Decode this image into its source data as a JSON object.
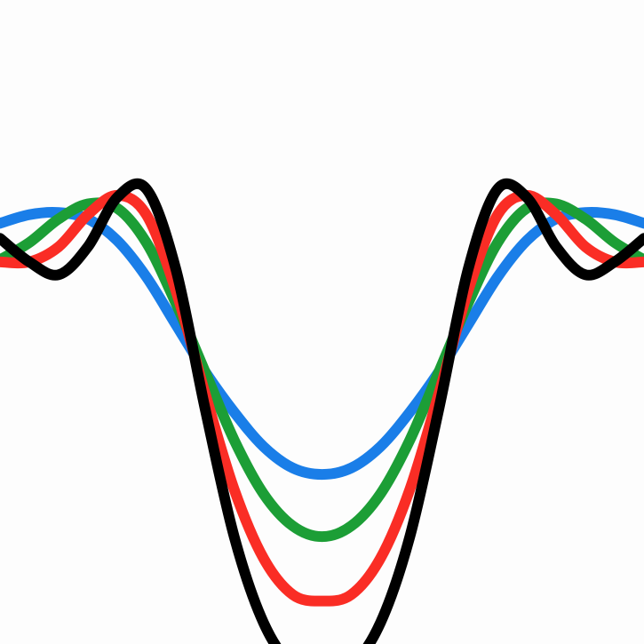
{
  "chart_data": {
    "type": "line",
    "title": "",
    "xlabel": "",
    "ylabel": "",
    "xlim": [
      -2.2,
      2.2
    ],
    "ylim": [
      -1.5,
      1.5
    ],
    "grid": false,
    "legend": "none",
    "axes_visible": false,
    "series": [
      {
        "color": "#1a7ee8",
        "x": [
          -2.2,
          -2.0,
          -1.8,
          -1.6,
          -1.4,
          -1.2,
          -1.0,
          -0.8,
          -0.6,
          -0.4,
          -0.2,
          0.0,
          0.2,
          0.4,
          0.6,
          0.8,
          1.0,
          1.2,
          1.4,
          1.6,
          1.8,
          2.0,
          2.2
        ],
        "y": [
          0.46,
          0.5,
          0.51,
          0.48,
          0.38,
          0.21,
          -0.01,
          -0.23,
          -0.42,
          -0.58,
          -0.68,
          -0.71,
          -0.68,
          -0.58,
          -0.42,
          -0.23,
          -0.01,
          0.21,
          0.38,
          0.48,
          0.51,
          0.5,
          0.46
        ]
      },
      {
        "color": "#1c9e36",
        "x": [
          -2.2,
          -2.0,
          -1.8,
          -1.6,
          -1.4,
          -1.2,
          -1.0,
          -0.8,
          -0.6,
          -0.4,
          -0.2,
          0.0,
          0.2,
          0.4,
          0.6,
          0.8,
          1.0,
          1.2,
          1.4,
          1.6,
          1.8,
          2.0,
          2.2
        ],
        "y": [
          0.29,
          0.37,
          0.48,
          0.55,
          0.53,
          0.37,
          0.09,
          -0.23,
          -0.55,
          -0.8,
          -0.95,
          -1.0,
          -0.95,
          -0.8,
          -0.55,
          -0.23,
          0.09,
          0.37,
          0.53,
          0.55,
          0.48,
          0.37,
          0.29
        ]
      },
      {
        "color": "#fa2d25",
        "x": [
          -2.2,
          -2.0,
          -1.8,
          -1.6,
          -1.4,
          -1.2,
          -1.0,
          -0.8,
          -0.6,
          -0.4,
          -0.2,
          0.0,
          0.2,
          0.4,
          0.6,
          0.8,
          1.0,
          1.2,
          1.4,
          1.6,
          1.8,
          2.0,
          2.2
        ],
        "y": [
          0.28,
          0.28,
          0.35,
          0.5,
          0.59,
          0.5,
          0.15,
          -0.33,
          -0.78,
          -1.1,
          -1.27,
          -1.3,
          -1.27,
          -1.1,
          -0.78,
          -0.33,
          0.15,
          0.5,
          0.59,
          0.5,
          0.35,
          0.28,
          0.28
        ]
      },
      {
        "color": "#000000",
        "x": [
          -2.2,
          -2.0,
          -1.8,
          -1.6,
          -1.4,
          -1.2,
          -1.0,
          -0.8,
          -0.6,
          -0.4,
          -0.2,
          0.0,
          0.2,
          0.4,
          0.6,
          0.8,
          1.0,
          1.2,
          1.4,
          1.6,
          1.8,
          2.0,
          2.2
        ],
        "y": [
          0.39,
          0.28,
          0.22,
          0.35,
          0.58,
          0.62,
          0.25,
          -0.4,
          -1.0,
          -1.4,
          -1.6,
          -1.62,
          -1.6,
          -1.4,
          -1.0,
          -0.4,
          0.25,
          0.62,
          0.58,
          0.35,
          0.22,
          0.28,
          0.39
        ]
      }
    ]
  }
}
